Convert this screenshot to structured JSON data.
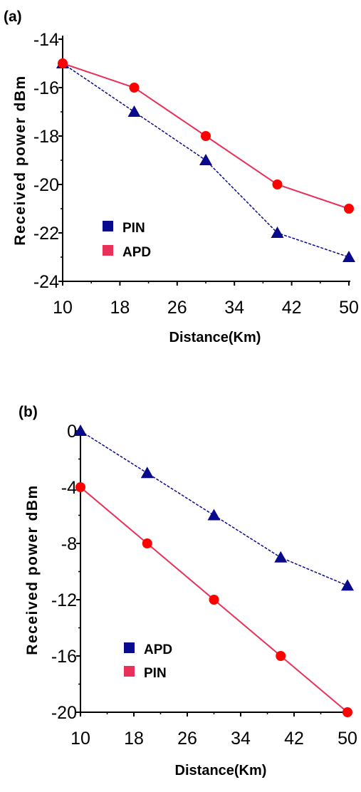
{
  "chart_data": [
    {
      "panel_label": "(a)",
      "type": "line",
      "xlabel": "Distance(Km)",
      "ylabel": "Received power dBm",
      "xlim": [
        10,
        50
      ],
      "ylim": [
        -24,
        -14
      ],
      "x_ticks": [
        10,
        18,
        26,
        34,
        42,
        50
      ],
      "y_ticks": [
        -14,
        -16,
        -18,
        -20,
        -22,
        -24
      ],
      "legend_position": "lower-left",
      "series": [
        {
          "name": "PIN",
          "marker": "triangle",
          "line_style": "dashed",
          "color": "#0a0a8c",
          "x": [
            10,
            20,
            30,
            40,
            50
          ],
          "y": [
            -15,
            -17,
            -19,
            -22,
            -23
          ]
        },
        {
          "name": "APD",
          "marker": "circle",
          "line_style": "solid",
          "color": "#e8305a",
          "marker_color": "#ff0000",
          "x": [
            10,
            20,
            30,
            40,
            50
          ],
          "y": [
            -15,
            -16,
            -18,
            -20,
            -21
          ]
        }
      ]
    },
    {
      "panel_label": "(b)",
      "type": "line",
      "xlabel": "Distance(Km)",
      "ylabel": "Received power dBm",
      "xlim": [
        10,
        50
      ],
      "ylim": [
        -20,
        0
      ],
      "x_ticks": [
        10,
        18,
        26,
        34,
        42,
        50
      ],
      "y_ticks": [
        0,
        -4,
        -8,
        -12,
        -16,
        -20
      ],
      "legend_position": "lower-left",
      "series": [
        {
          "name": "APD",
          "marker": "triangle",
          "line_style": "dashed",
          "color": "#0a0a8c",
          "x": [
            10,
            20,
            30,
            40,
            50
          ],
          "y": [
            0,
            -3,
            -6,
            -9,
            -11
          ]
        },
        {
          "name": "PIN",
          "marker": "circle",
          "line_style": "solid",
          "color": "#e8305a",
          "marker_color": "#ff0000",
          "x": [
            10,
            20,
            30,
            40,
            50
          ],
          "y": [
            -4,
            -8,
            -12,
            -16,
            -20
          ]
        }
      ]
    }
  ]
}
